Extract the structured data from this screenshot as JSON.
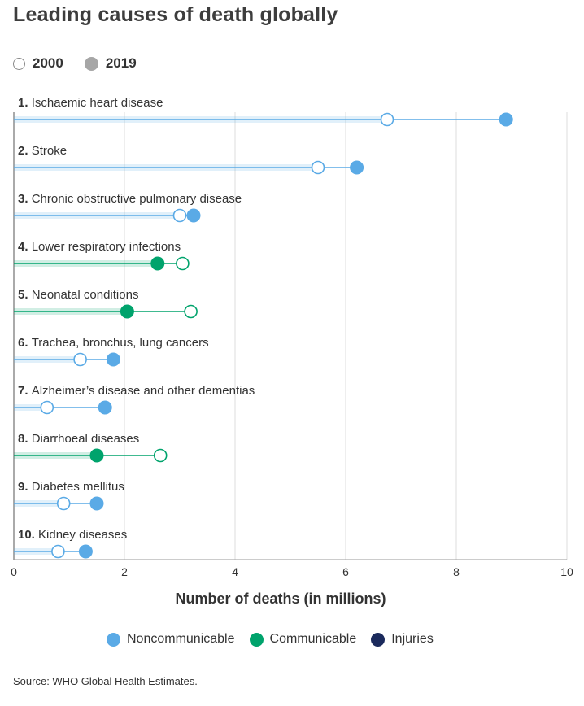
{
  "page": {
    "title": "Leading causes of death globally",
    "source": "Source: WHO Global Health Estimates."
  },
  "year_legend": {
    "hollow_label": "2000",
    "filled_label": "2019",
    "filled_color": "#a6a6a6"
  },
  "category_legend": [
    {
      "label": "Noncommunicable",
      "color": "#5aaae6"
    },
    {
      "label": "Communicable",
      "color": "#00a36c"
    },
    {
      "label": "Injuries",
      "color": "#1b2a5c"
    }
  ],
  "chart_data": {
    "type": "dumbbell",
    "title": "Leading causes of death globally",
    "xlabel": "Number of deaths (in millions)",
    "ylabel": "",
    "xlim": [
      0,
      10
    ],
    "xticks": [
      0,
      2,
      4,
      6,
      8,
      10
    ],
    "grid": true,
    "series": [
      {
        "name": "2000",
        "marker": "hollow circle"
      },
      {
        "name": "2019",
        "marker": "filled circle"
      }
    ],
    "rows": [
      {
        "rank": "1.",
        "label": "Ischaemic heart disease",
        "category": "Noncommunicable",
        "v2000": 6.75,
        "v2019": 8.9
      },
      {
        "rank": "2.",
        "label": "Stroke",
        "category": "Noncommunicable",
        "v2000": 5.5,
        "v2019": 6.2
      },
      {
        "rank": "3.",
        "label": "Chronic obstructive pulmonary disease",
        "category": "Noncommunicable",
        "v2000": 3.0,
        "v2019": 3.25
      },
      {
        "rank": "4.",
        "label": "Lower respiratory infections",
        "category": "Communicable",
        "v2000": 3.05,
        "v2019": 2.6
      },
      {
        "rank": "5.",
        "label": "Neonatal conditions",
        "category": "Communicable",
        "v2000": 3.2,
        "v2019": 2.05
      },
      {
        "rank": "6.",
        "label": "Trachea, bronchus, lung cancers",
        "category": "Noncommunicable",
        "v2000": 1.2,
        "v2019": 1.8
      },
      {
        "rank": "7.",
        "label": "Alzheimer’s disease and other dementias",
        "category": "Noncommunicable",
        "v2000": 0.6,
        "v2019": 1.65
      },
      {
        "rank": "8.",
        "label": "Diarrhoeal diseases",
        "category": "Communicable",
        "v2000": 2.65,
        "v2019": 1.5
      },
      {
        "rank": "9.",
        "label": "Diabetes mellitus",
        "category": "Noncommunicable",
        "v2000": 0.9,
        "v2019": 1.5
      },
      {
        "rank": "10.",
        "label": "Kidney diseases",
        "category": "Noncommunicable",
        "v2000": 0.8,
        "v2019": 1.3
      }
    ]
  }
}
